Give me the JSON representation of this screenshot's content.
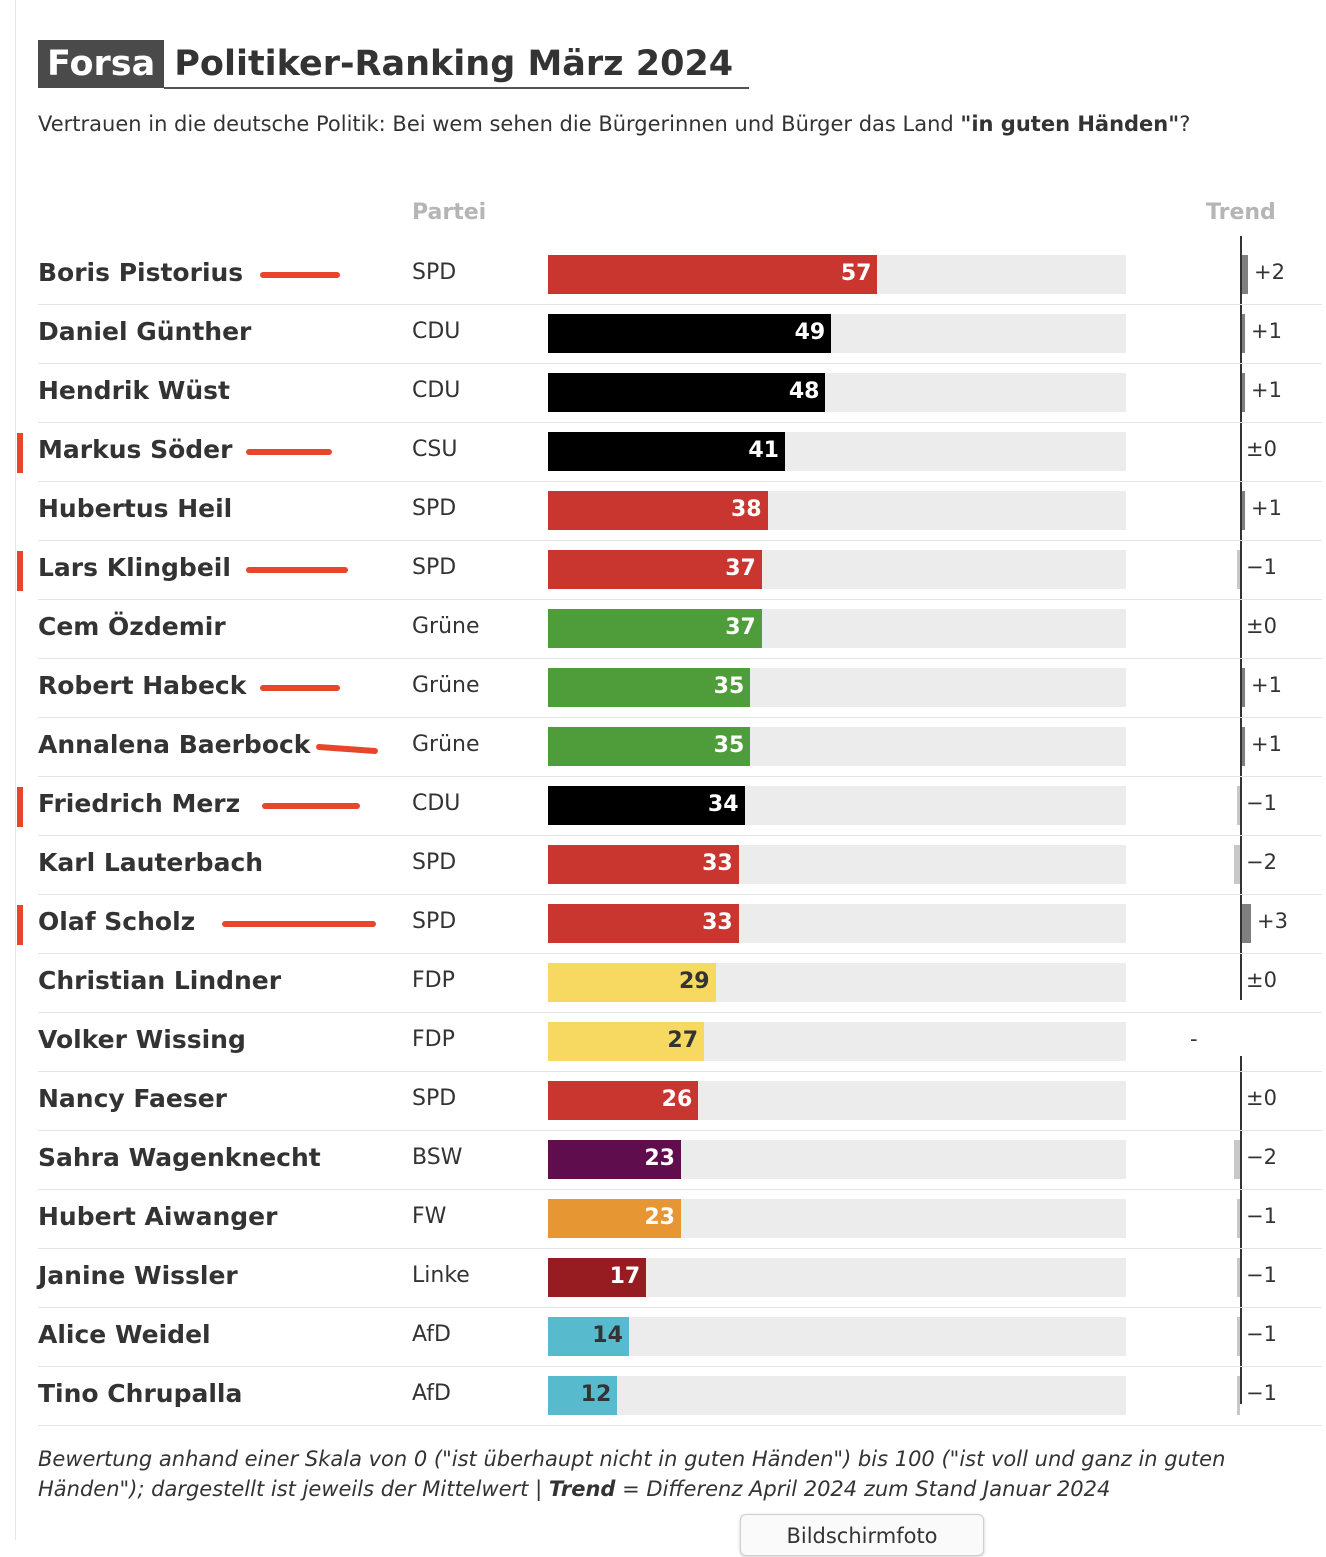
{
  "header": {
    "brand": "Forsa",
    "title": "Politiker-Ranking März 2024",
    "subtitle_plain": "Vertrauen in die deutsche Politik: Bei wem sehen die Bürgerinnen und Bürger das Land ",
    "subtitle_bold": "\"in guten Händen\"",
    "subtitle_end": "?"
  },
  "columns": {
    "party": "Partei",
    "trend": "Trend"
  },
  "colors": {
    "SPD": "#c9352f",
    "CDU": "#000000",
    "CSU": "#000000",
    "Grüne": "#4f9d3a",
    "FDP": "#f7d961",
    "BSW": "#600d4d",
    "FW": "#e79634",
    "Linke": "#971c22",
    "AfD": "#57bacd",
    "annotation": "#e8462a"
  },
  "chart_data": {
    "type": "bar",
    "orientation": "horizontal",
    "title": "Politiker-Ranking März 2024",
    "xlim": [
      0,
      100
    ],
    "categories": [
      "Boris Pistorius",
      "Daniel Günther",
      "Hendrik Wüst",
      "Markus Söder",
      "Hubertus Heil",
      "Lars Klingbeil",
      "Cem Özdemir",
      "Robert Habeck",
      "Annalena Baerbock",
      "Friedrich Merz",
      "Karl Lauterbach",
      "Olaf Scholz",
      "Christian Lindner",
      "Volker Wissing",
      "Nancy Faeser",
      "Sahra Wagenknecht",
      "Hubert Aiwanger",
      "Janine Wissler",
      "Alice Weidel",
      "Tino Chrupalla"
    ],
    "parties": [
      "SPD",
      "CDU",
      "CDU",
      "CSU",
      "SPD",
      "SPD",
      "Grüne",
      "Grüne",
      "Grüne",
      "CDU",
      "SPD",
      "SPD",
      "FDP",
      "FDP",
      "SPD",
      "BSW",
      "FW",
      "Linke",
      "AfD",
      "AfD"
    ],
    "values": [
      57,
      49,
      48,
      41,
      38,
      37,
      37,
      35,
      35,
      34,
      33,
      33,
      29,
      27,
      26,
      23,
      23,
      17,
      14,
      12
    ],
    "trend": [
      2,
      1,
      1,
      0,
      1,
      -1,
      0,
      1,
      1,
      -1,
      -2,
      3,
      0,
      null,
      0,
      -2,
      -1,
      -1,
      -1,
      -1
    ],
    "trend_labels": [
      "+2",
      "+1",
      "+1",
      "±0",
      "+1",
      "−1",
      "±0",
      "+1",
      "+1",
      "−1",
      "−2",
      "+3",
      "±0",
      "-",
      "±0",
      "−2",
      "−1",
      "−1",
      "−1",
      "−1"
    ],
    "annotations": {
      "red_side_marker": [
        "Markus Söder",
        "Lars Klingbeil",
        "Friedrich Merz",
        "Olaf Scholz"
      ],
      "red_underline": [
        "Boris Pistorius",
        "Markus Söder",
        "Lars Klingbeil",
        "Robert Habeck",
        "Annalena Baerbock",
        "Friedrich Merz",
        "Olaf Scholz"
      ]
    }
  },
  "footer": {
    "note_1": "Bewertung anhand einer Skala von 0 (\"ist überhaupt nicht in guten Händen\") bis 100 (\"ist voll und ganz in guten Händen\"); dargestellt ist jeweils der Mittelwert | ",
    "note_bold": "Trend",
    "note_2": " = Differenz April 2024 zum Stand Januar 2024",
    "screenshot_button": "Bildschirmfoto"
  }
}
